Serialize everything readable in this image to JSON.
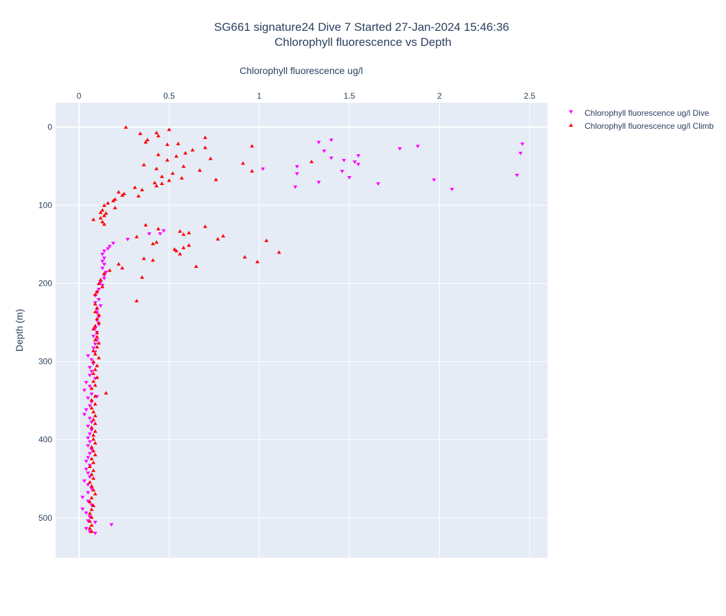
{
  "chart_data": {
    "type": "scatter",
    "title": "SG661 signature24 Dive 7 Started 27-Jan-2024 15:46:36",
    "subtitle": "Chlorophyll fluorescence vs Depth",
    "xlabel": "Chlorophyll fluorescence ug/l",
    "ylabel": "Depth (m)",
    "x_axis_position": "top",
    "y_reversed": true,
    "xlim": [
      -0.13,
      2.6
    ],
    "ylim": [
      551,
      -31
    ],
    "x_ticks": [
      0,
      0.5,
      1,
      1.5,
      2,
      2.5
    ],
    "x_tick_labels": [
      "0",
      "0.5",
      "1",
      "1.5",
      "2",
      "2.5"
    ],
    "y_ticks": [
      0,
      100,
      200,
      300,
      400,
      500
    ],
    "y_tick_labels": [
      "0",
      "100",
      "200",
      "300",
      "400",
      "500"
    ],
    "grid": true,
    "legend_position": "top-right",
    "colors": {
      "plot_bg": "#e5ecf6",
      "grid": "#ffffff",
      "text": "#2a3f5f"
    },
    "series": [
      {
        "name": "Chlorophyll fluorescence ug/l Dive",
        "marker": "triangle-down",
        "color": "#ff00ff",
        "points": [
          [
            2.46,
            22
          ],
          [
            2.45,
            34
          ],
          [
            2.43,
            62
          ],
          [
            1.88,
            25
          ],
          [
            1.78,
            28
          ],
          [
            2.07,
            80
          ],
          [
            1.97,
            68
          ],
          [
            1.66,
            73
          ],
          [
            1.55,
            37
          ],
          [
            1.55,
            48
          ],
          [
            1.53,
            45
          ],
          [
            1.5,
            65
          ],
          [
            1.46,
            57
          ],
          [
            1.47,
            43
          ],
          [
            1.4,
            17
          ],
          [
            1.4,
            40
          ],
          [
            1.36,
            31
          ],
          [
            1.33,
            20
          ],
          [
            1.33,
            71
          ],
          [
            1.21,
            51
          ],
          [
            1.21,
            60
          ],
          [
            1.2,
            77
          ],
          [
            1.02,
            54
          ],
          [
            0.47,
            133
          ],
          [
            0.45,
            137
          ],
          [
            0.39,
            137
          ],
          [
            0.27,
            144
          ],
          [
            0.19,
            149
          ],
          [
            0.17,
            153
          ],
          [
            0.16,
            156
          ],
          [
            0.14,
            159
          ],
          [
            0.13,
            163
          ],
          [
            0.14,
            168
          ],
          [
            0.13,
            172
          ],
          [
            0.14,
            176
          ],
          [
            0.13,
            181
          ],
          [
            0.15,
            186
          ],
          [
            0.14,
            190
          ],
          [
            0.14,
            194
          ],
          [
            0.12,
            199
          ],
          [
            0.13,
            203
          ],
          [
            0.11,
            208
          ],
          [
            0.1,
            212
          ],
          [
            0.09,
            216
          ],
          [
            0.11,
            221
          ],
          [
            0.09,
            225
          ],
          [
            0.12,
            229
          ],
          [
            0.1,
            234
          ],
          [
            0.1,
            238
          ],
          [
            0.11,
            243
          ],
          [
            0.1,
            248
          ],
          [
            0.11,
            253
          ],
          [
            0.09,
            258
          ],
          [
            0.1,
            263
          ],
          [
            0.08,
            268
          ],
          [
            0.1,
            273
          ],
          [
            0.09,
            278
          ],
          [
            0.08,
            283
          ],
          [
            0.09,
            288
          ],
          [
            0.05,
            293
          ],
          [
            0.07,
            298
          ],
          [
            0.08,
            303
          ],
          [
            0.06,
            308
          ],
          [
            0.07,
            313
          ],
          [
            0.06,
            318
          ],
          [
            0.09,
            322
          ],
          [
            0.04,
            327
          ],
          [
            0.06,
            332
          ],
          [
            0.03,
            337
          ],
          [
            0.07,
            342
          ],
          [
            0.05,
            347
          ],
          [
            0.1,
            345
          ],
          [
            0.07,
            352
          ],
          [
            0.06,
            357
          ],
          [
            0.04,
            362
          ],
          [
            0.03,
            368
          ],
          [
            0.06,
            373
          ],
          [
            0.07,
            378
          ],
          [
            0.05,
            383
          ],
          [
            0.07,
            388
          ],
          [
            0.06,
            393
          ],
          [
            0.05,
            398
          ],
          [
            0.06,
            403
          ],
          [
            0.05,
            408
          ],
          [
            0.07,
            413
          ],
          [
            0.06,
            418
          ],
          [
            0.05,
            423
          ],
          [
            0.04,
            428
          ],
          [
            0.06,
            433
          ],
          [
            0.04,
            438
          ],
          [
            0.05,
            443
          ],
          [
            0.06,
            448
          ],
          [
            0.03,
            453
          ],
          [
            0.05,
            458
          ],
          [
            0.07,
            463
          ],
          [
            0.05,
            468
          ],
          [
            0.02,
            474
          ],
          [
            0.05,
            479
          ],
          [
            0.07,
            484
          ],
          [
            0.02,
            489
          ],
          [
            0.04,
            494
          ],
          [
            0.06,
            499
          ],
          [
            0.05,
            504
          ],
          [
            0.09,
            506
          ],
          [
            0.18,
            509
          ],
          [
            0.04,
            514
          ],
          [
            0.06,
            518
          ],
          [
            0.09,
            520
          ]
        ]
      },
      {
        "name": "Chlorophyll fluorescence ug/l Climb",
        "marker": "triangle-up",
        "color": "#ff0000",
        "points": [
          [
            0.26,
            0
          ],
          [
            0.5,
            3
          ],
          [
            0.34,
            8
          ],
          [
            0.43,
            7
          ],
          [
            0.44,
            11
          ],
          [
            0.38,
            16
          ],
          [
            0.7,
            13
          ],
          [
            0.37,
            19
          ],
          [
            0.55,
            21
          ],
          [
            0.49,
            22
          ],
          [
            0.7,
            26
          ],
          [
            0.96,
            24
          ],
          [
            0.63,
            29
          ],
          [
            0.59,
            33
          ],
          [
            0.44,
            35
          ],
          [
            0.54,
            37
          ],
          [
            0.73,
            40
          ],
          [
            0.49,
            42
          ],
          [
            1.29,
            44
          ],
          [
            0.91,
            46
          ],
          [
            0.36,
            48
          ],
          [
            0.58,
            50
          ],
          [
            0.43,
            53
          ],
          [
            0.67,
            55
          ],
          [
            0.96,
            56
          ],
          [
            0.52,
            59
          ],
          [
            0.46,
            63
          ],
          [
            0.57,
            65
          ],
          [
            0.76,
            67
          ],
          [
            0.5,
            68
          ],
          [
            0.42,
            71
          ],
          [
            0.46,
            72
          ],
          [
            0.43,
            75
          ],
          [
            0.31,
            77
          ],
          [
            0.35,
            80
          ],
          [
            0.22,
            83
          ],
          [
            0.25,
            85
          ],
          [
            0.24,
            87
          ],
          [
            0.33,
            88
          ],
          [
            0.2,
            92
          ],
          [
            0.19,
            94
          ],
          [
            0.16,
            97
          ],
          [
            0.14,
            100
          ],
          [
            0.2,
            103
          ],
          [
            0.13,
            106
          ],
          [
            0.12,
            109
          ],
          [
            0.15,
            110
          ],
          [
            0.14,
            113
          ],
          [
            0.12,
            116
          ],
          [
            0.08,
            118
          ],
          [
            0.13,
            121
          ],
          [
            0.14,
            124
          ],
          [
            0.37,
            125
          ],
          [
            0.7,
            127
          ],
          [
            0.44,
            130
          ],
          [
            0.56,
            133
          ],
          [
            0.61,
            135
          ],
          [
            0.58,
            137
          ],
          [
            0.8,
            139
          ],
          [
            0.32,
            140
          ],
          [
            0.77,
            143
          ],
          [
            1.04,
            145
          ],
          [
            0.43,
            147
          ],
          [
            0.41,
            149
          ],
          [
            0.61,
            151
          ],
          [
            0.58,
            154
          ],
          [
            0.53,
            156
          ],
          [
            0.54,
            158
          ],
          [
            0.56,
            162
          ],
          [
            1.11,
            160
          ],
          [
            0.92,
            166
          ],
          [
            0.36,
            168
          ],
          [
            0.41,
            170
          ],
          [
            0.99,
            172
          ],
          [
            0.22,
            175
          ],
          [
            0.65,
            178
          ],
          [
            0.24,
            180
          ],
          [
            0.17,
            183
          ],
          [
            0.14,
            187
          ],
          [
            0.35,
            192
          ],
          [
            0.12,
            195
          ],
          [
            0.11,
            200
          ],
          [
            0.13,
            204
          ],
          [
            0.1,
            210
          ],
          [
            0.09,
            214
          ],
          [
            0.32,
            222
          ],
          [
            0.09,
            226
          ],
          [
            0.1,
            231
          ],
          [
            0.09,
            236
          ],
          [
            0.11,
            240
          ],
          [
            0.1,
            245
          ],
          [
            0.11,
            250
          ],
          [
            0.09,
            254
          ],
          [
            0.08,
            258
          ],
          [
            0.1,
            263
          ],
          [
            0.1,
            268
          ],
          [
            0.09,
            272
          ],
          [
            0.11,
            276
          ],
          [
            0.1,
            281
          ],
          [
            0.08,
            286
          ],
          [
            0.09,
            290
          ],
          [
            0.11,
            295
          ],
          [
            0.08,
            300
          ],
          [
            0.1,
            305
          ],
          [
            0.09,
            310
          ],
          [
            0.08,
            315
          ],
          [
            0.1,
            320
          ],
          [
            0.08,
            325
          ],
          [
            0.09,
            330
          ],
          [
            0.07,
            334
          ],
          [
            0.15,
            340
          ],
          [
            0.09,
            344
          ],
          [
            0.07,
            349
          ],
          [
            0.09,
            354
          ],
          [
            0.07,
            359
          ],
          [
            0.08,
            364
          ],
          [
            0.09,
            369
          ],
          [
            0.08,
            374
          ],
          [
            0.09,
            379
          ],
          [
            0.07,
            384
          ],
          [
            0.09,
            389
          ],
          [
            0.08,
            394
          ],
          [
            0.08,
            399
          ],
          [
            0.09,
            404
          ],
          [
            0.07,
            409
          ],
          [
            0.08,
            414
          ],
          [
            0.09,
            419
          ],
          [
            0.07,
            424
          ],
          [
            0.08,
            429
          ],
          [
            0.06,
            434
          ],
          [
            0.08,
            439
          ],
          [
            0.07,
            444
          ],
          [
            0.08,
            449
          ],
          [
            0.06,
            454
          ],
          [
            0.07,
            459
          ],
          [
            0.08,
            464
          ],
          [
            0.09,
            469
          ],
          [
            0.07,
            474
          ],
          [
            0.06,
            479
          ],
          [
            0.08,
            484
          ],
          [
            0.07,
            489
          ],
          [
            0.06,
            494
          ],
          [
            0.07,
            499
          ],
          [
            0.06,
            504
          ],
          [
            0.07,
            509
          ],
          [
            0.06,
            513
          ],
          [
            0.07,
            517
          ]
        ]
      }
    ]
  }
}
